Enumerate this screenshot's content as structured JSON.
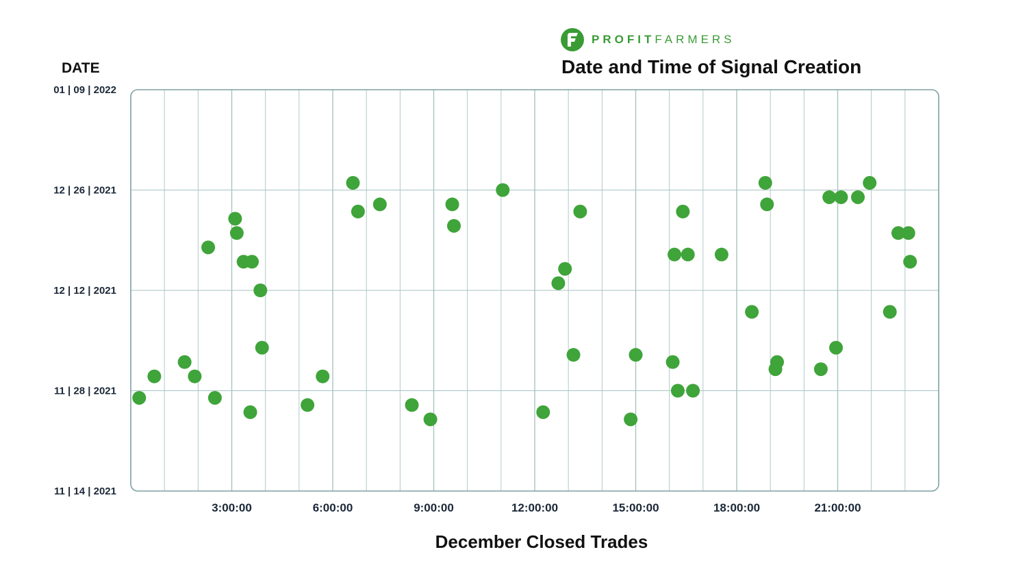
{
  "brand": {
    "name_bold": "PROFIT",
    "name_light": "FARMERS",
    "logo_icon": "leaf-f-logo-icon",
    "color": "#3a9b35"
  },
  "chart_data": {
    "type": "scatter",
    "title": "Date and Time of Signal Creation",
    "ylabel": "DATE",
    "xlabel": "December Closed Trades",
    "x_axis": {
      "unit": "time of day (hours)",
      "range": [
        0,
        24
      ],
      "ticks": [
        3,
        6,
        9,
        12,
        15,
        18,
        21
      ],
      "tick_labels": [
        "3:00:00",
        "6:00:00",
        "9:00:00",
        "12:00:00",
        "15:00:00",
        "18:00:00",
        "21:00:00"
      ]
    },
    "y_axis": {
      "range": [
        "2021-11-14",
        "2022-01-09"
      ],
      "ticks": [
        "2021-11-14",
        "2021-11-28",
        "2021-12-12",
        "2021-12-26",
        "2022-01-09"
      ],
      "tick_labels": [
        "11 | 14 | 2021",
        "11 | 28 | 2021",
        "12 | 12 | 2021",
        "12 | 26 | 2021",
        "01 | 09 | 2022"
      ]
    },
    "grid": true,
    "marker_color": "#3fa43a",
    "grid_color": "#a8c2c2",
    "frame_color": "#7fa0a3",
    "points": [
      {
        "x": 0.25,
        "y": "2021-11-27"
      },
      {
        "x": 0.7,
        "y": "2021-11-30"
      },
      {
        "x": 1.6,
        "y": "2021-12-02"
      },
      {
        "x": 1.9,
        "y": "2021-11-30"
      },
      {
        "x": 2.3,
        "y": "2021-12-18"
      },
      {
        "x": 2.5,
        "y": "2021-11-27"
      },
      {
        "x": 3.1,
        "y": "2021-12-22"
      },
      {
        "x": 3.15,
        "y": "2021-12-20"
      },
      {
        "x": 3.35,
        "y": "2021-12-16"
      },
      {
        "x": 3.6,
        "y": "2021-12-16"
      },
      {
        "x": 3.55,
        "y": "2021-11-25"
      },
      {
        "x": 3.85,
        "y": "2021-12-12"
      },
      {
        "x": 3.9,
        "y": "2021-12-04"
      },
      {
        "x": 5.25,
        "y": "2021-11-26"
      },
      {
        "x": 5.7,
        "y": "2021-11-30"
      },
      {
        "x": 6.6,
        "y": "2021-12-27"
      },
      {
        "x": 6.75,
        "y": "2021-12-23"
      },
      {
        "x": 7.4,
        "y": "2021-12-24"
      },
      {
        "x": 8.35,
        "y": "2021-11-26"
      },
      {
        "x": 8.9,
        "y": "2021-11-24"
      },
      {
        "x": 9.55,
        "y": "2021-12-24"
      },
      {
        "x": 9.6,
        "y": "2021-12-21"
      },
      {
        "x": 11.05,
        "y": "2021-12-26"
      },
      {
        "x": 12.25,
        "y": "2021-11-25"
      },
      {
        "x": 12.7,
        "y": "2021-12-13"
      },
      {
        "x": 12.9,
        "y": "2021-12-15"
      },
      {
        "x": 13.15,
        "y": "2021-12-03"
      },
      {
        "x": 13.35,
        "y": "2021-12-23"
      },
      {
        "x": 14.85,
        "y": "2021-11-24"
      },
      {
        "x": 15.0,
        "y": "2021-12-03"
      },
      {
        "x": 16.1,
        "y": "2021-12-02"
      },
      {
        "x": 16.15,
        "y": "2021-12-17"
      },
      {
        "x": 16.25,
        "y": "2021-11-28"
      },
      {
        "x": 16.4,
        "y": "2021-12-23"
      },
      {
        "x": 16.55,
        "y": "2021-12-17"
      },
      {
        "x": 16.7,
        "y": "2021-11-28"
      },
      {
        "x": 17.55,
        "y": "2021-12-17"
      },
      {
        "x": 18.45,
        "y": "2021-12-09"
      },
      {
        "x": 18.85,
        "y": "2021-12-27"
      },
      {
        "x": 18.9,
        "y": "2021-12-24"
      },
      {
        "x": 19.15,
        "y": "2021-12-01"
      },
      {
        "x": 19.2,
        "y": "2021-12-02"
      },
      {
        "x": 20.5,
        "y": "2021-12-01"
      },
      {
        "x": 20.75,
        "y": "2021-12-25"
      },
      {
        "x": 20.95,
        "y": "2021-12-04"
      },
      {
        "x": 21.1,
        "y": "2021-12-25"
      },
      {
        "x": 21.6,
        "y": "2021-12-25"
      },
      {
        "x": 21.95,
        "y": "2021-12-27"
      },
      {
        "x": 22.55,
        "y": "2021-12-09"
      },
      {
        "x": 22.8,
        "y": "2021-12-20"
      },
      {
        "x": 23.1,
        "y": "2021-12-20"
      },
      {
        "x": 23.15,
        "y": "2021-12-16"
      }
    ]
  }
}
